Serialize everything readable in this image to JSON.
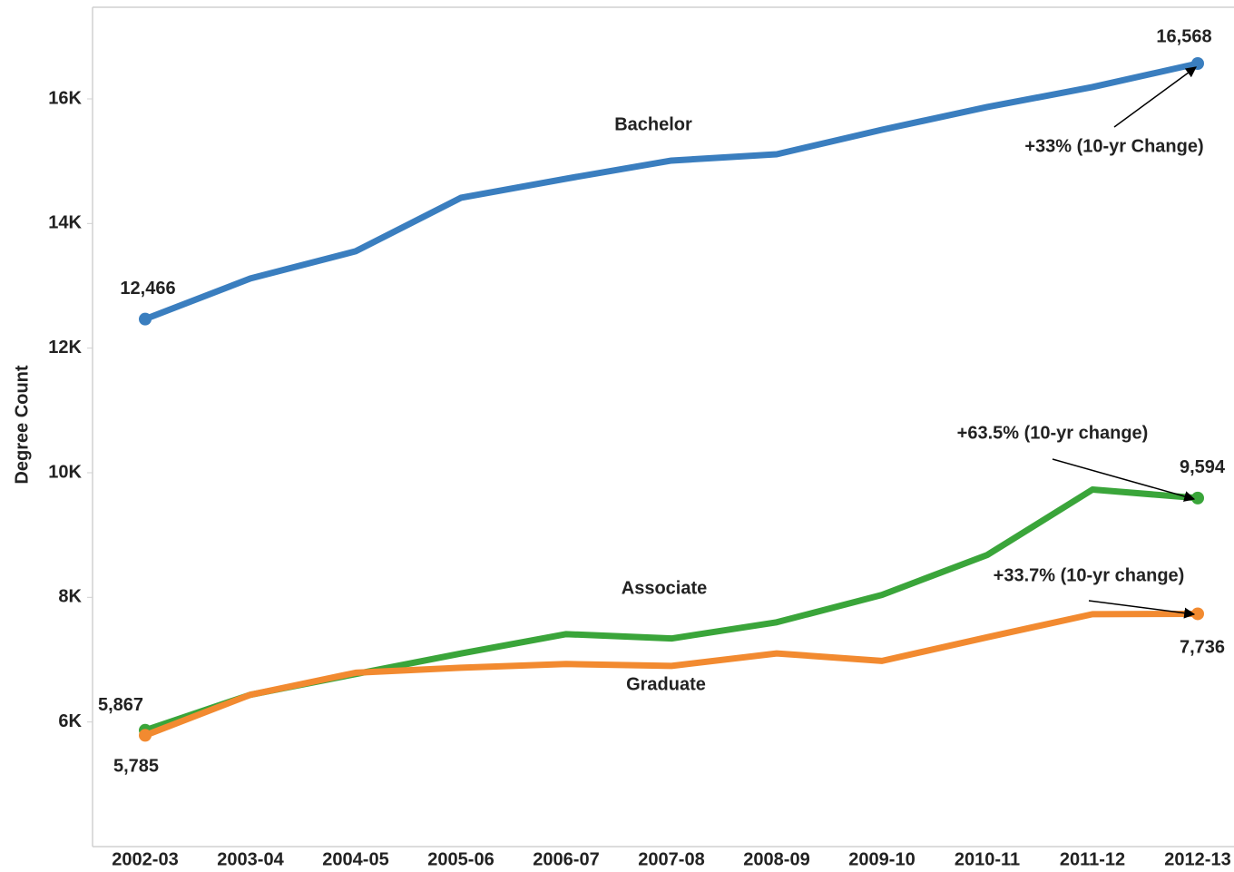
{
  "chart_data": {
    "type": "line",
    "y_label": "Degree Count",
    "categories": [
      "2002-03",
      "2003-04",
      "2004-05",
      "2005-06",
      "2006-07",
      "2007-08",
      "2008-09",
      "2009-10",
      "2010-11",
      "2011-12",
      "2012-13"
    ],
    "series": [
      {
        "name": "Bachelor",
        "color": "#3a7ebf",
        "values": [
          12466,
          13118,
          13555,
          14413,
          14720,
          15010,
          15112,
          15505,
          15870,
          16190,
          16568
        ],
        "value_labels": [
          "12,466",
          null,
          null,
          null,
          null,
          null,
          null,
          null,
          null,
          null,
          "16,568"
        ]
      },
      {
        "name": "Associate",
        "color": "#3aa53a",
        "values": [
          5867,
          6437,
          6770,
          7100,
          7410,
          7340,
          7600,
          8040,
          8680,
          9730,
          9594
        ],
        "value_labels": [
          "5,867",
          null,
          null,
          null,
          null,
          null,
          null,
          null,
          null,
          null,
          "9,594"
        ]
      },
      {
        "name": "Graduate",
        "color": "#f28a30",
        "values": [
          5785,
          6437,
          6790,
          6870,
          6930,
          6900,
          7100,
          6980,
          7360,
          7730,
          7736
        ],
        "value_labels": [
          "5,785",
          null,
          null,
          null,
          null,
          null,
          null,
          null,
          null,
          null,
          "7,736"
        ]
      }
    ],
    "annotations": [
      "+33% (10-yr Change)",
      "+63.5% (10-yr change)",
      "+33.7% (10-yr change)"
    ],
    "ylim": [
      4000,
      17500
    ],
    "yticks": [
      {
        "value": 6000,
        "label": "6K"
      },
      {
        "value": 8000,
        "label": "8K"
      },
      {
        "value": 10000,
        "label": "10K"
      },
      {
        "value": 12000,
        "label": "12K"
      },
      {
        "value": 14000,
        "label": "14K"
      },
      {
        "value": 16000,
        "label": "16K"
      }
    ],
    "grid": false
  }
}
